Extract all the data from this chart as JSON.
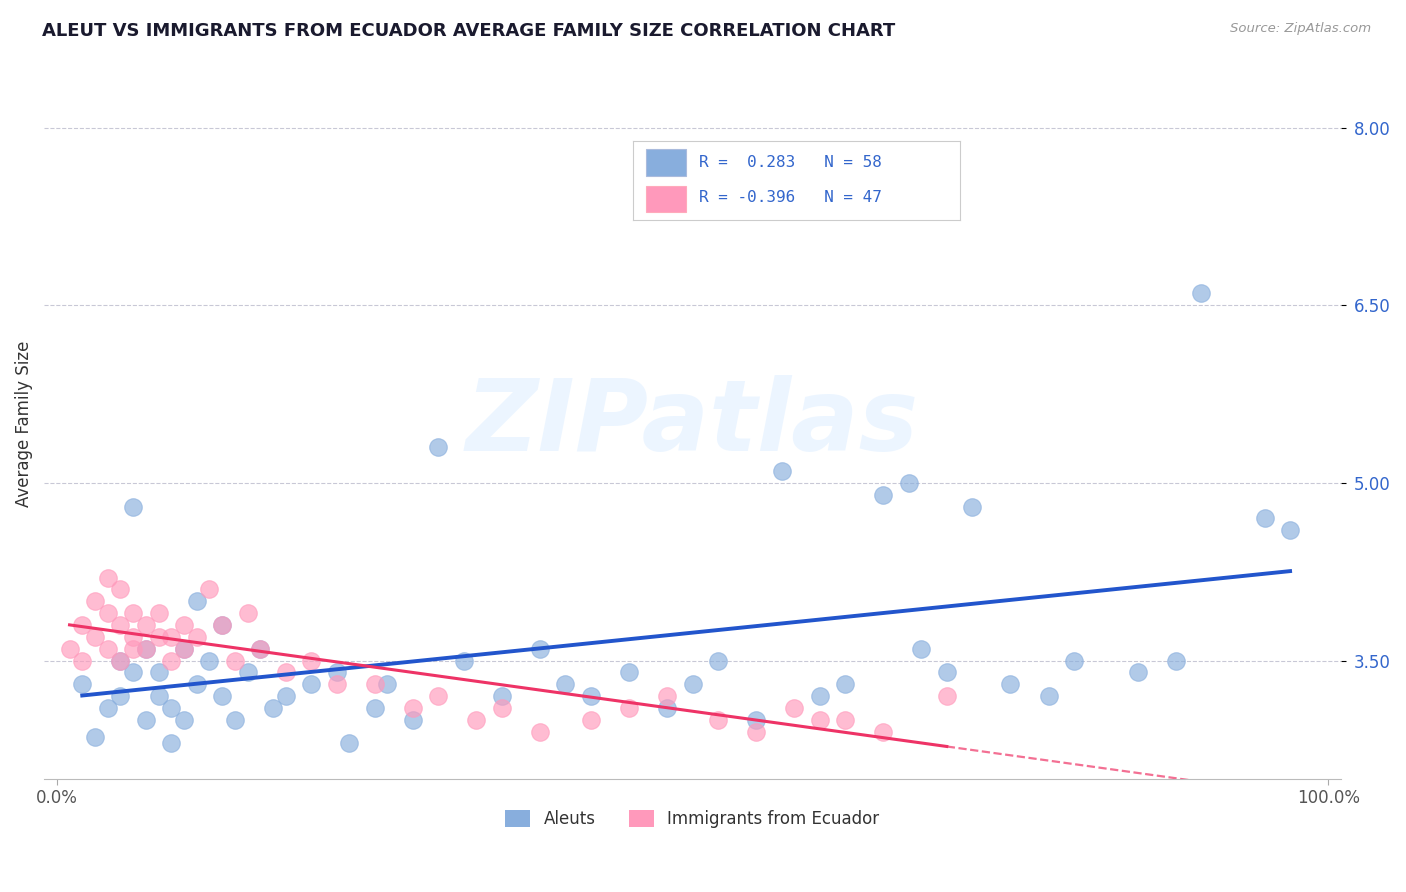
{
  "title": "ALEUT VS IMMIGRANTS FROM ECUADOR AVERAGE FAMILY SIZE CORRELATION CHART",
  "source": "Source: ZipAtlas.com",
  "ylabel": "Average Family Size",
  "yticks": [
    3.5,
    5.0,
    6.5,
    8.0
  ],
  "ytick_labels": [
    "3.50",
    "5.00",
    "6.50",
    "8.00"
  ],
  "xtick_labels": [
    "0.0%",
    "100.0%"
  ],
  "legend_bottom_label1": "Aleuts",
  "legend_bottom_label2": "Immigrants from Ecuador",
  "color_blue": "#88AEDD",
  "color_pink": "#FF99BB",
  "color_blue_line": "#2255CC",
  "color_pink_line": "#EE3366",
  "color_grid": "#BBBBCC",
  "watermark": "ZIPatlas",
  "blue_scatter_x": [
    0.02,
    0.03,
    0.04,
    0.05,
    0.05,
    0.06,
    0.06,
    0.07,
    0.07,
    0.08,
    0.08,
    0.09,
    0.09,
    0.1,
    0.1,
    0.11,
    0.11,
    0.12,
    0.13,
    0.13,
    0.14,
    0.15,
    0.16,
    0.17,
    0.18,
    0.2,
    0.22,
    0.23,
    0.25,
    0.26,
    0.28,
    0.3,
    0.32,
    0.35,
    0.38,
    0.4,
    0.42,
    0.45,
    0.48,
    0.5,
    0.52,
    0.55,
    0.57,
    0.6,
    0.62,
    0.65,
    0.67,
    0.68,
    0.7,
    0.72,
    0.75,
    0.78,
    0.8,
    0.85,
    0.88,
    0.9,
    0.95,
    0.97
  ],
  "blue_scatter_y": [
    3.3,
    2.85,
    3.1,
    3.5,
    3.2,
    4.8,
    3.4,
    3.6,
    3.0,
    3.2,
    3.4,
    2.8,
    3.1,
    3.6,
    3.0,
    4.0,
    3.3,
    3.5,
    3.8,
    3.2,
    3.0,
    3.4,
    3.6,
    3.1,
    3.2,
    3.3,
    3.4,
    2.8,
    3.1,
    3.3,
    3.0,
    5.3,
    3.5,
    3.2,
    3.6,
    3.3,
    3.2,
    3.4,
    3.1,
    3.3,
    3.5,
    3.0,
    5.1,
    3.2,
    3.3,
    4.9,
    5.0,
    3.6,
    3.4,
    4.8,
    3.3,
    3.2,
    3.5,
    3.4,
    3.5,
    6.6,
    4.7,
    4.6
  ],
  "pink_scatter_x": [
    0.01,
    0.02,
    0.02,
    0.03,
    0.03,
    0.04,
    0.04,
    0.04,
    0.05,
    0.05,
    0.05,
    0.06,
    0.06,
    0.06,
    0.07,
    0.07,
    0.08,
    0.08,
    0.09,
    0.09,
    0.1,
    0.1,
    0.11,
    0.12,
    0.13,
    0.14,
    0.15,
    0.16,
    0.18,
    0.2,
    0.22,
    0.25,
    0.28,
    0.3,
    0.33,
    0.35,
    0.38,
    0.42,
    0.45,
    0.48,
    0.52,
    0.55,
    0.58,
    0.6,
    0.62,
    0.65,
    0.7
  ],
  "pink_scatter_y": [
    3.6,
    3.5,
    3.8,
    3.7,
    4.0,
    3.6,
    3.9,
    4.2,
    3.5,
    3.8,
    4.1,
    3.6,
    3.7,
    3.9,
    3.6,
    3.8,
    3.7,
    3.9,
    3.5,
    3.7,
    3.6,
    3.8,
    3.7,
    4.1,
    3.8,
    3.5,
    3.9,
    3.6,
    3.4,
    3.5,
    3.3,
    3.3,
    3.1,
    3.2,
    3.0,
    3.1,
    2.9,
    3.0,
    3.1,
    3.2,
    3.0,
    2.9,
    3.1,
    3.0,
    3.0,
    2.9,
    3.2
  ]
}
